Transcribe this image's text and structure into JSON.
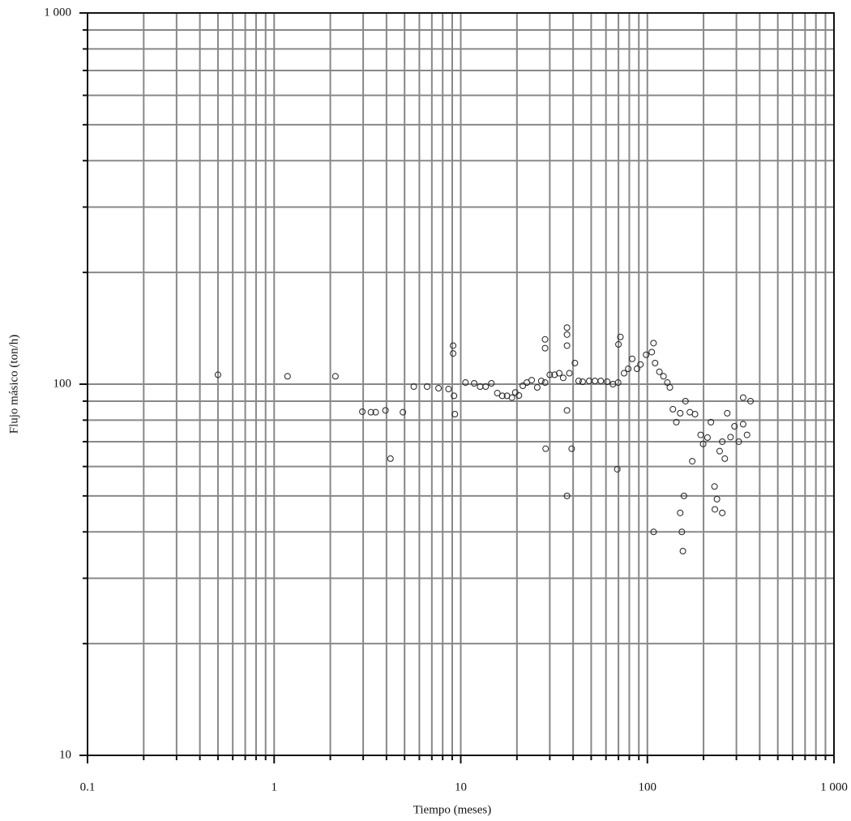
{
  "chart_data": {
    "type": "scatter",
    "x_label": "Tiempo (meses)",
    "y_label": "Flujo másico (ton/h)",
    "x_scale": "log",
    "y_scale": "log",
    "grid": true,
    "minor_grid": true,
    "xlim": [
      0.1,
      1000
    ],
    "ylim": [
      10,
      1000
    ],
    "xticks": [
      0.1,
      1,
      10,
      100,
      {
        "value": 1000,
        "label": "1 000"
      }
    ],
    "yticks": [
      10,
      100,
      {
        "value": 1000,
        "label": "1 000"
      }
    ],
    "color": "#222222",
    "x": [
      0.5,
      1.18,
      2.13,
      2.97,
      3.3,
      3.5,
      3.95,
      4.2,
      4.9,
      5.6,
      6.6,
      7.6,
      8.6,
      9.1,
      9.1,
      9.2,
      9.3,
      10.6,
      11.8,
      12.7,
      13.6,
      14.6,
      15.7,
      16.7,
      17.7,
      18.8,
      19.6,
      20.5,
      21.5,
      22.6,
      24,
      25.7,
      27,
      28.3,
      28.3,
      28.5,
      28.3,
      30,
      31.8,
      33.7,
      35.4,
      37.1,
      37.1,
      37.1,
      37.1,
      37.1,
      38.2,
      39.3,
      40.9,
      42.8,
      45,
      48.8,
      52.4,
      56.3,
      60.9,
      65.4,
      69.7,
      69,
      71.7,
      70,
      75,
      79,
      82.9,
      88,
      91.8,
      98.5,
      105.6,
      107.9,
      110,
      116,
      122,
      128,
      132,
      137,
      143,
      150,
      160,
      169,
      174,
      180,
      193,
      199,
      210,
      219,
      229,
      236,
      244,
      252,
      260,
      268,
      279,
      293,
      309,
      326,
      342,
      357,
      108,
      150,
      153,
      155,
      157,
      230,
      252,
      326
    ],
    "values": [
      106,
      105,
      105,
      84.3,
      84,
      84,
      85,
      63,
      84,
      98.5,
      98.5,
      97.5,
      97,
      127,
      121,
      93,
      83,
      101,
      100.5,
      98.5,
      98.5,
      100.5,
      94.6,
      93,
      93,
      92,
      95,
      93.2,
      99,
      101,
      102.5,
      98,
      102,
      132,
      125,
      67,
      101,
      106,
      106,
      107,
      104,
      142,
      136,
      127,
      85,
      50,
      107,
      67,
      114,
      102,
      101.5,
      102,
      102,
      102,
      101.5,
      100,
      101,
      59,
      134,
      128,
      107,
      110,
      117,
      110,
      113,
      120,
      122,
      129,
      114,
      108,
      105,
      101,
      98,
      85.6,
      79,
      83.5,
      90,
      84,
      62,
      83,
      73,
      69,
      71.8,
      79,
      53,
      49,
      66,
      70,
      63,
      83.5,
      72,
      77,
      70,
      78,
      73,
      90,
      40,
      45,
      40,
      35.5,
      50,
      46,
      45,
      92
    ]
  }
}
